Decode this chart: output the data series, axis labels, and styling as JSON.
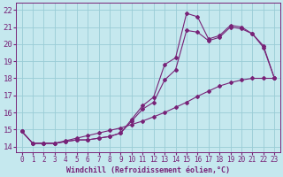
{
  "xlabel": "Windchill (Refroidissement éolien,°C)",
  "xlim": [
    -0.5,
    23.5
  ],
  "ylim": [
    13.7,
    22.4
  ],
  "xticks": [
    0,
    1,
    2,
    3,
    4,
    5,
    6,
    7,
    8,
    9,
    10,
    11,
    12,
    13,
    14,
    15,
    16,
    17,
    18,
    19,
    20,
    21,
    22,
    23
  ],
  "yticks": [
    14,
    15,
    16,
    17,
    18,
    19,
    20,
    21,
    22
  ],
  "background_color": "#c5e8ee",
  "line_color": "#772277",
  "grid_color": "#99ccd6",
  "line1_y": [
    14.9,
    14.2,
    14.2,
    14.2,
    14.3,
    14.4,
    14.4,
    14.5,
    14.6,
    14.8,
    15.6,
    16.4,
    16.9,
    18.8,
    19.2,
    21.8,
    21.6,
    20.3,
    20.5,
    21.1,
    21.0,
    20.6,
    19.9,
    18.0
  ],
  "line2_y": [
    14.9,
    14.2,
    14.2,
    14.2,
    14.3,
    14.4,
    14.4,
    14.5,
    14.6,
    14.8,
    15.5,
    16.2,
    16.6,
    17.9,
    18.5,
    20.8,
    20.7,
    20.2,
    20.4,
    21.0,
    20.9,
    20.6,
    19.8,
    18.0
  ],
  "line3_y": [
    14.9,
    14.2,
    14.2,
    14.2,
    14.35,
    14.5,
    14.65,
    14.8,
    14.95,
    15.1,
    15.3,
    15.5,
    15.75,
    16.0,
    16.3,
    16.6,
    16.95,
    17.25,
    17.55,
    17.75,
    17.9,
    18.0,
    18.0,
    18.0
  ],
  "xlabel_fontsize": 6,
  "ytick_fontsize": 6.5,
  "xtick_fontsize": 5.5
}
